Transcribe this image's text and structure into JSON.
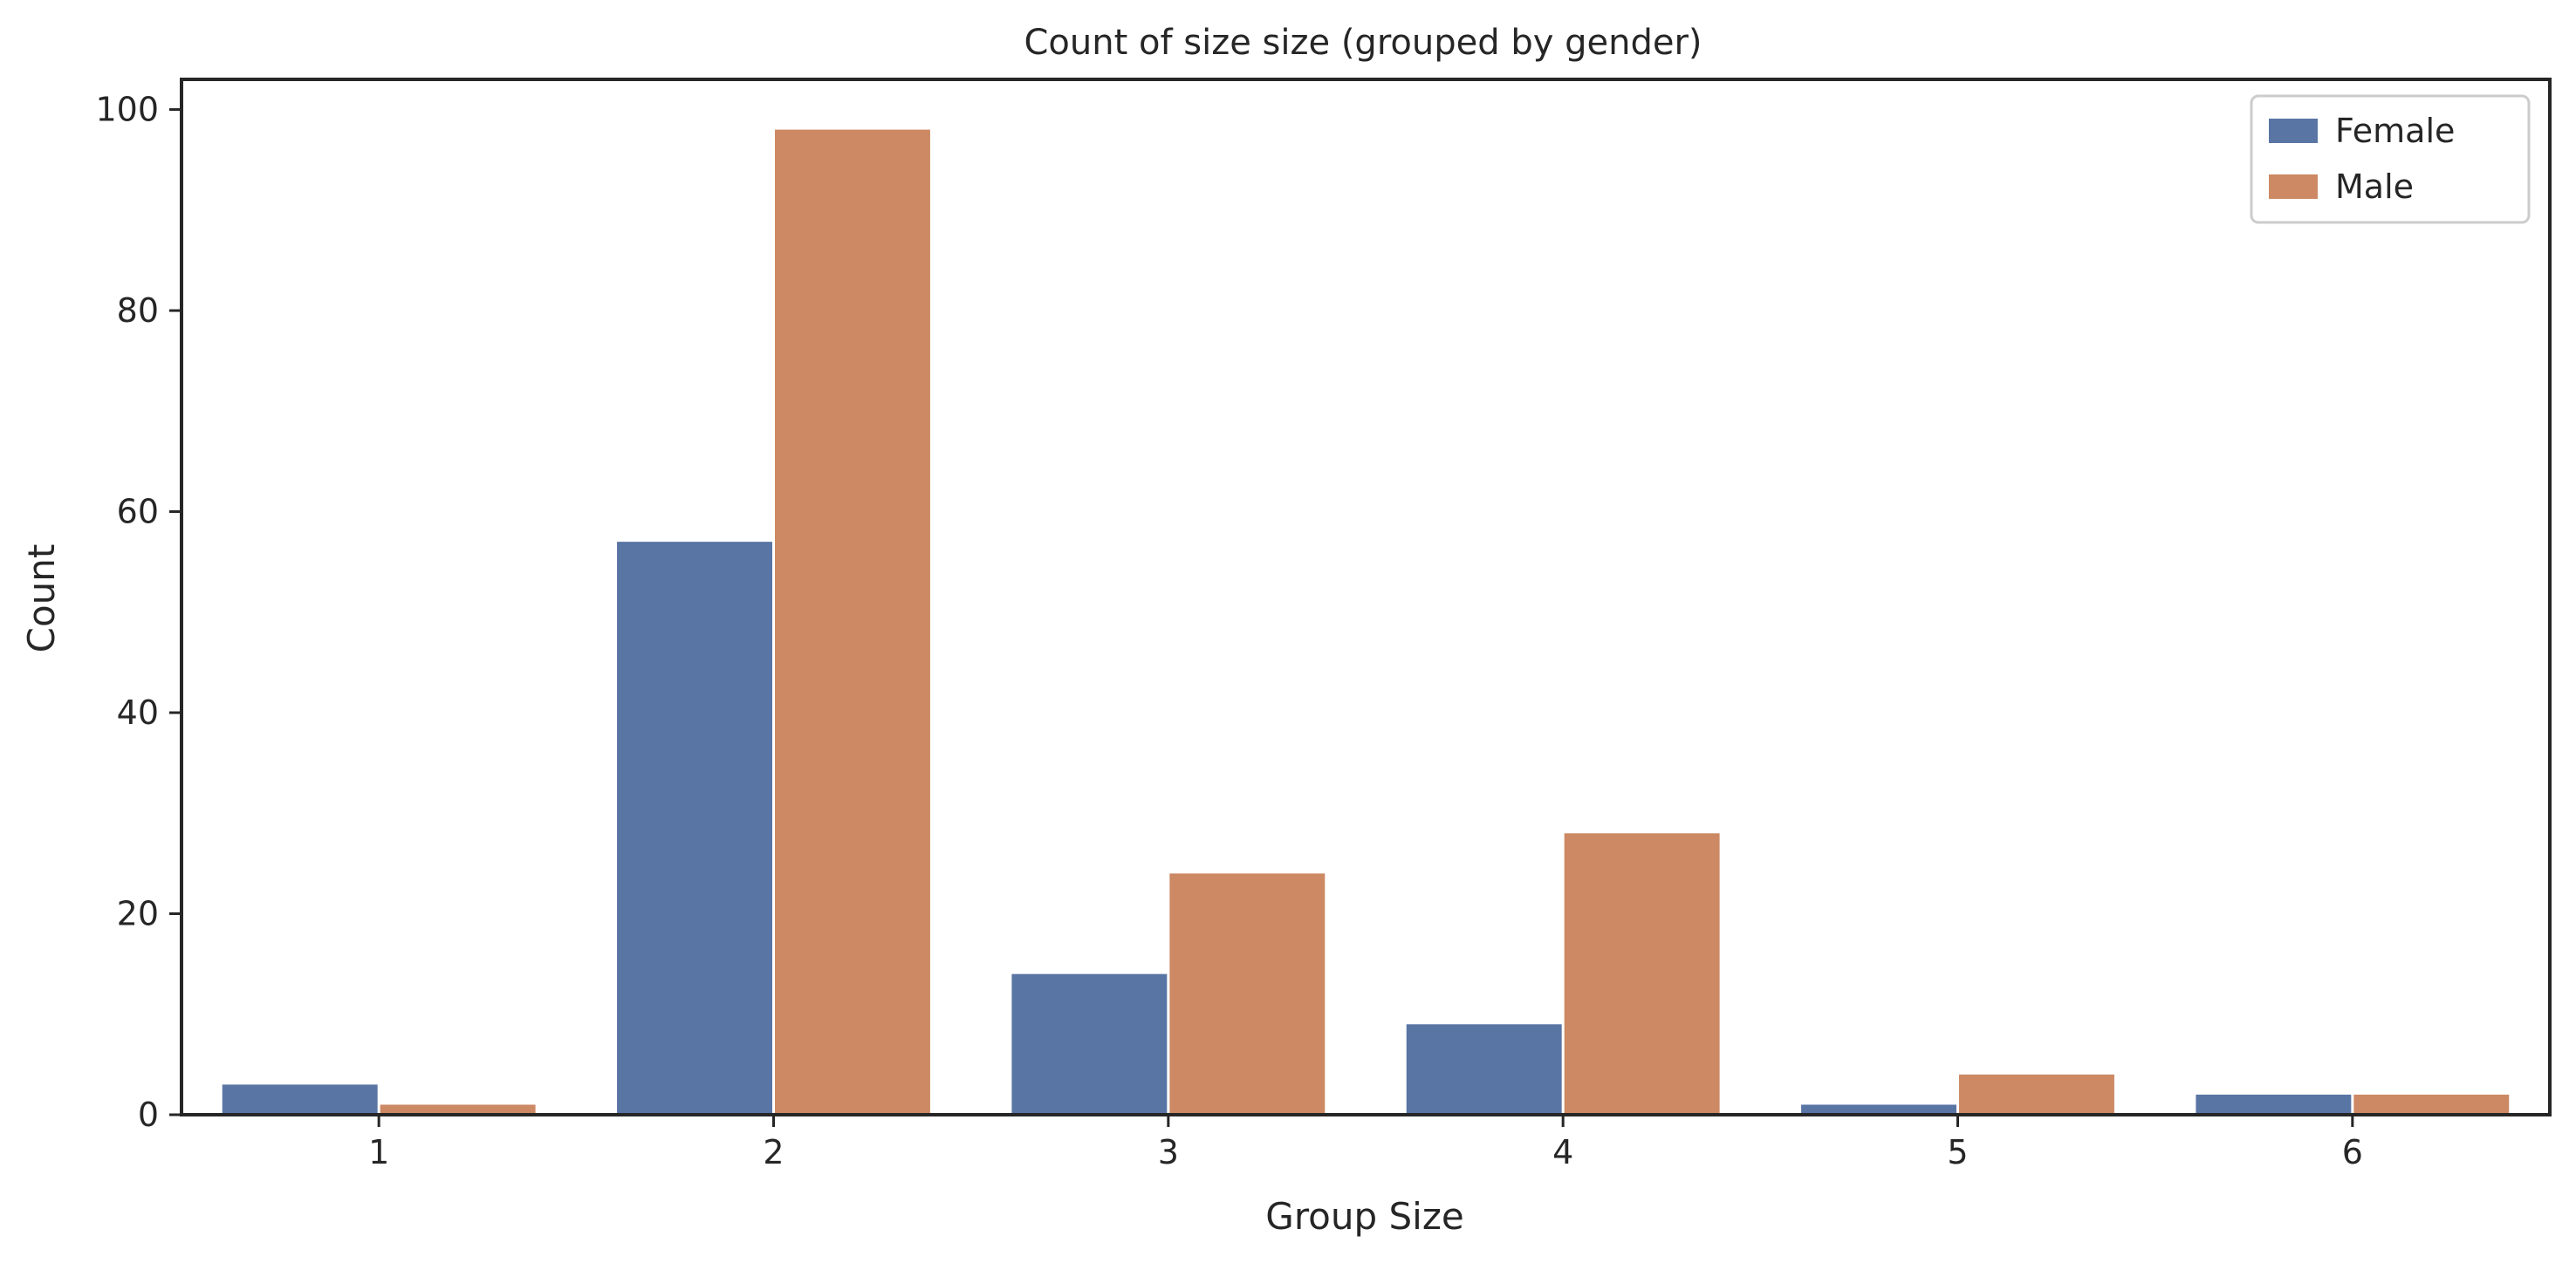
{
  "chart_data": {
    "type": "bar",
    "title": "Count of size size (grouped by gender)",
    "xlabel": "Group Size",
    "ylabel": "Count",
    "categories": [
      "1",
      "2",
      "3",
      "4",
      "5",
      "6"
    ],
    "series": [
      {
        "name": "Female",
        "color": "#5975a4",
        "values": [
          3,
          57,
          14,
          9,
          1,
          2
        ]
      },
      {
        "name": "Male",
        "color": "#cc8963",
        "values": [
          1,
          98,
          24,
          28,
          4,
          2
        ]
      }
    ],
    "ylim": [
      0,
      103
    ],
    "yticks": [
      0,
      20,
      40,
      60,
      80,
      100
    ],
    "grid": false,
    "legend_position": "top-right"
  }
}
